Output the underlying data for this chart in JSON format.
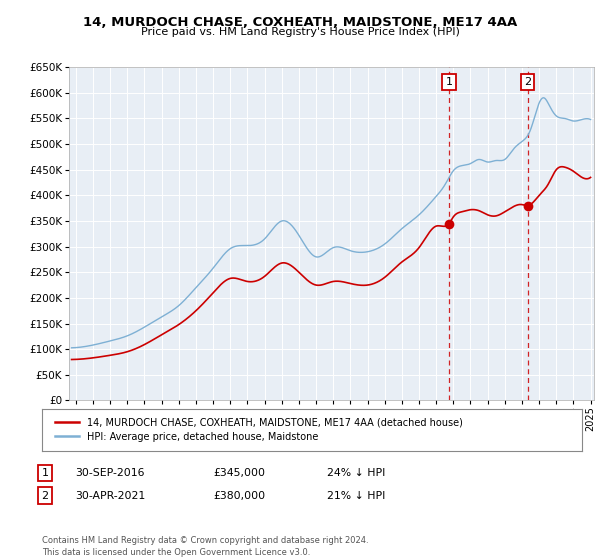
{
  "title": "14, MURDOCH CHASE, COXHEATH, MAIDSTONE, ME17 4AA",
  "subtitle": "Price paid vs. HM Land Registry's House Price Index (HPI)",
  "legend_property": "14, MURDOCH CHASE, COXHEATH, MAIDSTONE, ME17 4AA (detached house)",
  "legend_hpi": "HPI: Average price, detached house, Maidstone",
  "annotation1_date": "30-SEP-2016",
  "annotation1_price": "£345,000",
  "annotation1_hpi": "24% ↓ HPI",
  "annotation2_date": "30-APR-2021",
  "annotation2_price": "£380,000",
  "annotation2_hpi": "21% ↓ HPI",
  "footer": "Contains HM Land Registry data © Crown copyright and database right 2024.\nThis data is licensed under the Open Government Licence v3.0.",
  "property_color": "#cc0000",
  "hpi_color": "#7eb0d4",
  "background_color": "#ffffff",
  "plot_bg_color": "#e8eef5",
  "grid_color": "#ffffff",
  "ylim": [
    0,
    650000
  ],
  "sale1_x": 2016.75,
  "sale1_y": 345000,
  "sale2_x": 2021.33,
  "sale2_y": 380000,
  "xmin": 1994.6,
  "xmax": 2025.2,
  "hpi_knots": [
    1995,
    1996,
    1997,
    1998,
    1999,
    2000,
    2001,
    2002,
    2003,
    2004,
    2005,
    2006,
    2007,
    2008,
    2009,
    2010,
    2011,
    2012,
    2013,
    2014,
    2015,
    2016,
    2016.5,
    2017,
    2017.5,
    2018,
    2018.5,
    2019,
    2019.5,
    2020,
    2020.5,
    2021,
    2021.5,
    2022,
    2022.3,
    2022.6,
    2023,
    2023.5,
    2024,
    2024.5,
    2025
  ],
  "hpi_knot_vals": [
    103000,
    108000,
    116000,
    126000,
    143000,
    163000,
    185000,
    220000,
    258000,
    296000,
    302000,
    315000,
    350000,
    322000,
    280000,
    298000,
    292000,
    290000,
    305000,
    335000,
    362000,
    398000,
    420000,
    448000,
    458000,
    462000,
    470000,
    465000,
    468000,
    470000,
    490000,
    505000,
    528000,
    580000,
    590000,
    575000,
    555000,
    550000,
    545000,
    548000,
    548000
  ],
  "prop_knots": [
    1995,
    1996,
    1997,
    1998,
    1999,
    2000,
    2001,
    2002,
    2003,
    2004,
    2005,
    2006,
    2007,
    2008,
    2009,
    2010,
    2011,
    2012,
    2013,
    2014,
    2015,
    2016,
    2016.75,
    2017,
    2017.5,
    2018,
    2018.5,
    2019,
    2019.5,
    2020,
    2020.5,
    2021,
    2021.33,
    2021.75,
    2022,
    2022.5,
    2023,
    2023.5,
    2024,
    2024.5,
    2025
  ],
  "prop_knot_vals": [
    80000,
    83000,
    88000,
    95000,
    109000,
    128000,
    148000,
    175000,
    210000,
    238000,
    232000,
    242000,
    268000,
    250000,
    225000,
    232000,
    228000,
    225000,
    240000,
    270000,
    298000,
    340000,
    345000,
    358000,
    368000,
    372000,
    370000,
    362000,
    360000,
    368000,
    378000,
    382000,
    380000,
    390000,
    400000,
    420000,
    450000,
    455000,
    447000,
    435000,
    435000
  ]
}
